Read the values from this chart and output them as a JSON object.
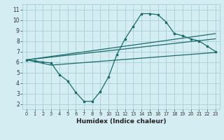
{
  "xlabel": "Humidex (Indice chaleur)",
  "bg_color": "#d4edf2",
  "grid_color": "#aacdd6",
  "line_color": "#1a6b6b",
  "xlim": [
    -0.5,
    23.5
  ],
  "ylim": [
    1.5,
    11.5
  ],
  "xticks": [
    0,
    1,
    2,
    3,
    4,
    5,
    6,
    7,
    8,
    9,
    10,
    11,
    12,
    13,
    14,
    15,
    16,
    17,
    18,
    19,
    20,
    21,
    22,
    23
  ],
  "yticks": [
    2,
    3,
    4,
    5,
    6,
    7,
    8,
    9,
    10,
    11
  ],
  "series1_x": [
    0,
    1,
    2,
    3,
    4,
    5,
    6,
    7,
    8,
    9,
    10,
    11,
    12,
    13,
    14,
    15,
    16,
    17,
    18,
    19,
    20,
    21,
    22,
    23
  ],
  "series1_y": [
    6.2,
    6.1,
    6.0,
    5.9,
    4.8,
    4.2,
    3.1,
    2.25,
    2.25,
    3.2,
    4.6,
    6.7,
    8.2,
    9.4,
    10.6,
    10.6,
    10.5,
    9.8,
    8.7,
    8.5,
    8.2,
    8.0,
    7.5,
    7.0
  ],
  "series2_x": [
    0,
    3,
    23
  ],
  "series2_y": [
    6.2,
    5.7,
    6.9
  ],
  "series3_x": [
    0,
    23
  ],
  "series3_y": [
    6.2,
    8.7
  ],
  "series4_x": [
    0,
    23
  ],
  "series4_y": [
    6.2,
    8.2
  ]
}
